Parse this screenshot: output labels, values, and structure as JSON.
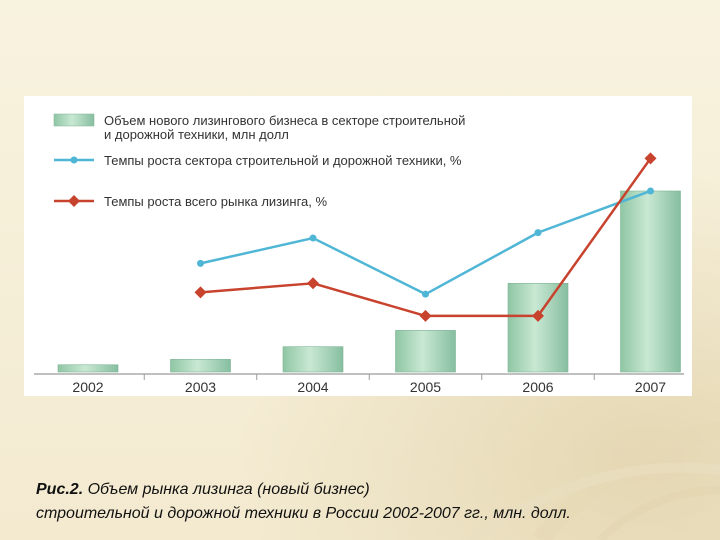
{
  "caption": {
    "figure_label": "Рис.2.",
    "line1": "Объем рынка лизинга (новый бизнес)",
    "line2": "строительной и дорожной техники в России 2002-2007 гг., млн. долл."
  },
  "chart_data": {
    "type": "bar",
    "categories": [
      "2002",
      "2003",
      "2004",
      "2005",
      "2006",
      "2007"
    ],
    "ylim": [
      0,
      1000
    ],
    "grid": false,
    "legend_placement": "top-left",
    "colors": {
      "bar": "#9fcfb0",
      "blue_line": "#4fb6d6",
      "red_line": "#c8432e"
    },
    "series": [
      {
        "name": "Объем нового лизингового бизнеса в секторе строительной и дорожной техники, млн долл",
        "type": "bar",
        "values": [
          40,
          70,
          140,
          230,
          490,
          1000
        ]
      },
      {
        "name": "Темпы роста сектора строительной и дорожной техники, %",
        "type": "line",
        "values": [
          null,
          600,
          740,
          430,
          770,
          1000
        ]
      },
      {
        "name": "Темпы роста всего рынка лизинга, %",
        "type": "line",
        "values": [
          null,
          440,
          490,
          310,
          310,
          1180
        ]
      }
    ]
  }
}
